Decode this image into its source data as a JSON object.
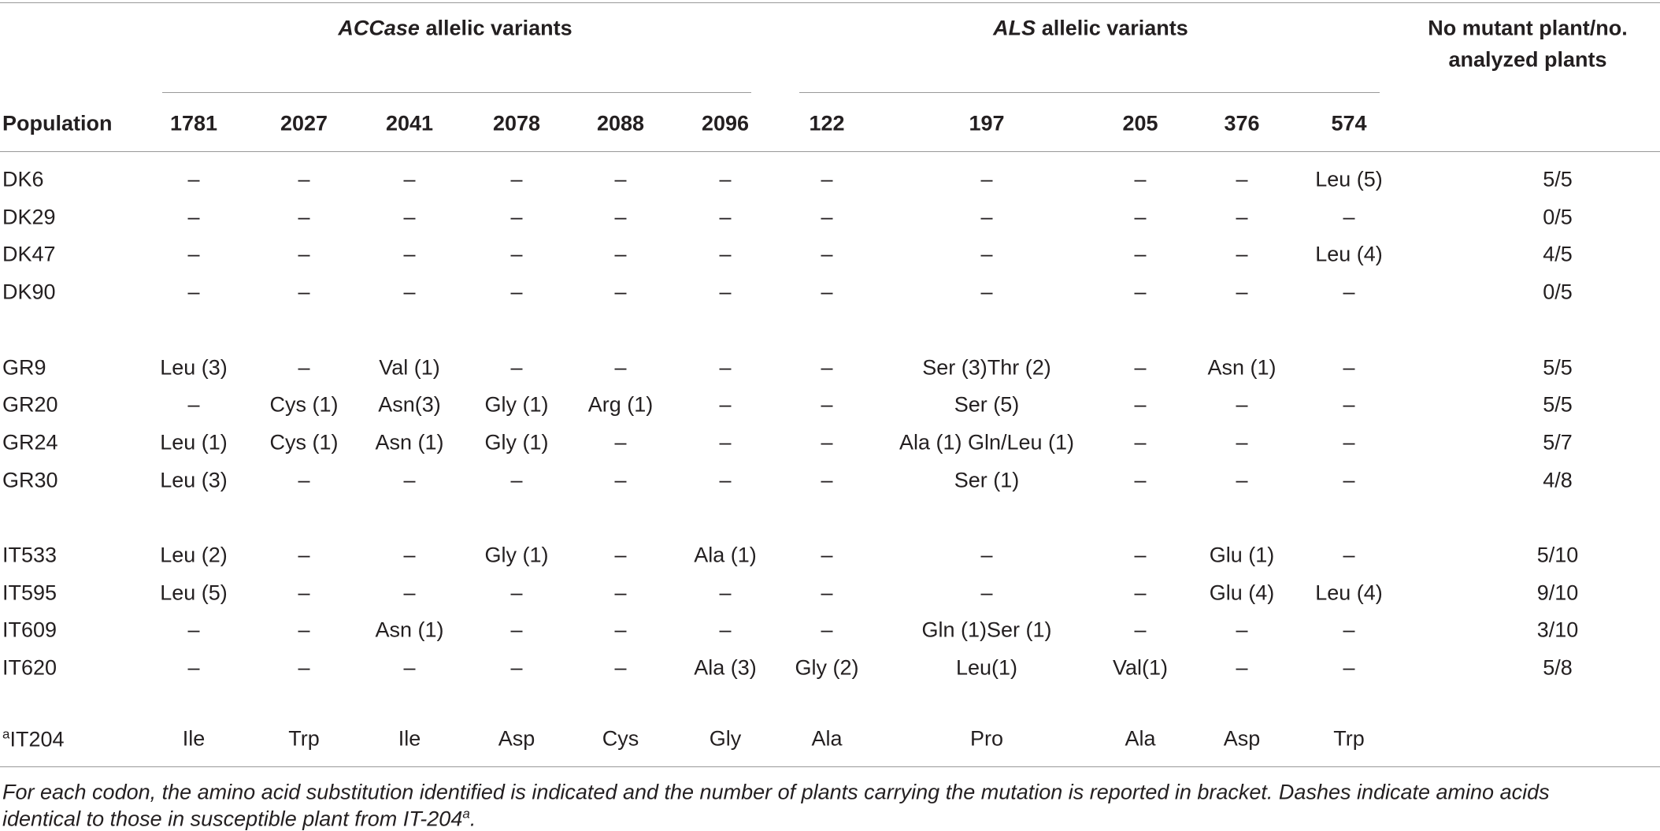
{
  "header": {
    "groups": [
      {
        "gene": "ACCase",
        "text": "allelic variants"
      },
      {
        "gene": "ALS",
        "text": "allelic variants"
      }
    ],
    "ratio_header": [
      "No mutant plant/no.",
      "analyzed plants"
    ],
    "population": "Population",
    "columns": [
      "1781",
      "2027",
      "2041",
      "2078",
      "2088",
      "2096",
      "122",
      "197",
      "205",
      "376",
      "574"
    ]
  },
  "table": {
    "row_groups": [
      [
        {
          "population": "DK6",
          "cells": [
            "–",
            "–",
            "–",
            "–",
            "–",
            "–",
            "–",
            "–",
            "–",
            "–",
            "Leu (5)"
          ],
          "ratio": "5/5"
        },
        {
          "population": "DK29",
          "cells": [
            "–",
            "–",
            "–",
            "–",
            "–",
            "–",
            "–",
            "–",
            "–",
            "–",
            "–"
          ],
          "ratio": "0/5"
        },
        {
          "population": "DK47",
          "cells": [
            "–",
            "–",
            "–",
            "–",
            "–",
            "–",
            "–",
            "–",
            "–",
            "–",
            "Leu (4)"
          ],
          "ratio": "4/5"
        },
        {
          "population": "DK90",
          "cells": [
            "–",
            "–",
            "–",
            "–",
            "–",
            "–",
            "–",
            "–",
            "–",
            "–",
            "–"
          ],
          "ratio": "0/5"
        }
      ],
      [
        {
          "population": "GR9",
          "cells": [
            "Leu (3)",
            "–",
            "Val (1)",
            "–",
            "–",
            "–",
            "–",
            "Ser (3)Thr (2)",
            "–",
            "Asn (1)",
            "–"
          ],
          "ratio": "5/5"
        },
        {
          "population": "GR20",
          "cells": [
            "–",
            "Cys (1)",
            "Asn(3)",
            "Gly (1)",
            "Arg (1)",
            "–",
            "–",
            "Ser (5)",
            "–",
            "–",
            "–"
          ],
          "ratio": "5/5"
        },
        {
          "population": "GR24",
          "cells": [
            "Leu (1)",
            "Cys (1)",
            "Asn (1)",
            "Gly (1)",
            "–",
            "–",
            "–",
            "Ala (1) Gln/Leu (1)",
            "–",
            "–",
            "–"
          ],
          "ratio": "5/7"
        },
        {
          "population": "GR30",
          "cells": [
            "Leu (3)",
            "–",
            "–",
            "–",
            "–",
            "–",
            "–",
            "Ser (1)",
            "–",
            "–",
            "–"
          ],
          "ratio": "4/8"
        }
      ],
      [
        {
          "population": "IT533",
          "cells": [
            "Leu (2)",
            "–",
            "–",
            "Gly (1)",
            "–",
            "Ala (1)",
            "–",
            "–",
            "–",
            "Glu (1)",
            "–"
          ],
          "ratio": "5/10"
        },
        {
          "population": "IT595",
          "cells": [
            "Leu (5)",
            "–",
            "–",
            "–",
            "–",
            "–",
            "–",
            "–",
            "–",
            "Glu (4)",
            "Leu (4)"
          ],
          "ratio": "9/10"
        },
        {
          "population": "IT609",
          "cells": [
            "–",
            "–",
            "Asn (1)",
            "–",
            "–",
            "–",
            "–",
            "Gln (1)Ser (1)",
            "–",
            "–",
            "–"
          ],
          "ratio": "3/10"
        },
        {
          "population": "IT620",
          "cells": [
            "–",
            "–",
            "–",
            "–",
            "–",
            "Ala (3)",
            "Gly (2)",
            "Leu(1)",
            "Val(1)",
            "–",
            "–"
          ],
          "ratio": "5/8"
        }
      ]
    ],
    "reference": {
      "superscript": "a",
      "population": "IT204",
      "cells": [
        "Ile",
        "Trp",
        "Ile",
        "Asp",
        "Cys",
        "Gly",
        "Ala",
        "Pro",
        "Ala",
        "Asp",
        "Trp"
      ]
    }
  },
  "footnote": {
    "lines": [
      "For each codon, the amino acid substitution identified is indicated and the number of plants carrying the mutation is reported in bracket. Dashes indicate amino acids",
      "identical to those in susceptible plant from IT-204"
    ],
    "superscript": "a",
    "end": "."
  }
}
